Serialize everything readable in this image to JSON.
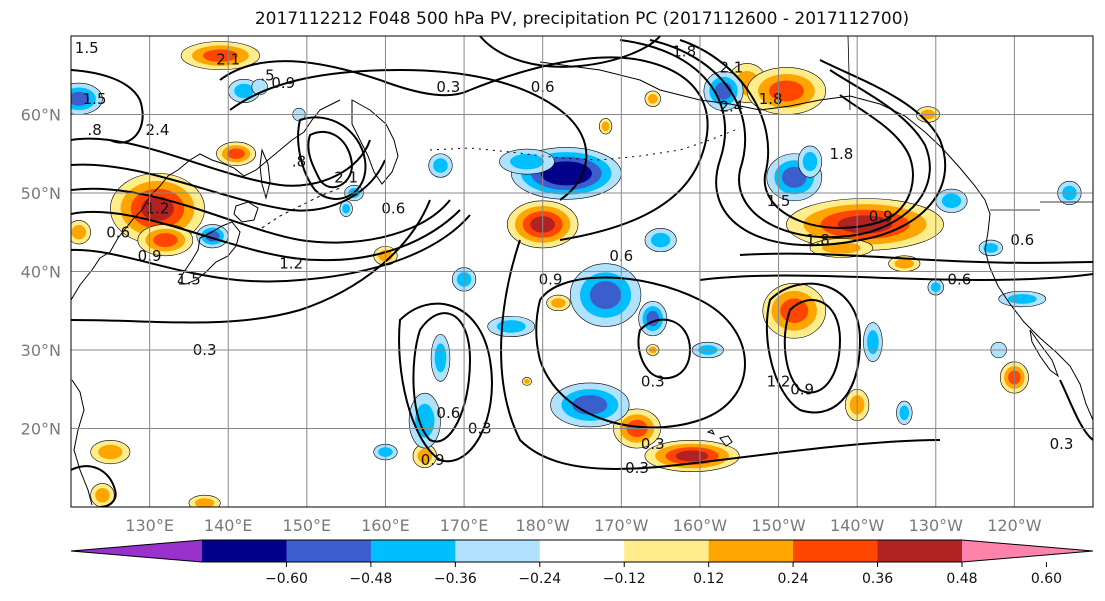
{
  "chart_data": {
    "type": "heatmap",
    "title": "2017112212 F048 500 hPa PV, precipitation PC (2017112600 - 2017112700)",
    "projection": "PlateCarree",
    "lon_range": [
      120,
      250
    ],
    "lat_range": [
      10,
      70
    ],
    "grid": true,
    "lat_ticks": [
      {
        "lat": 20,
        "label": "20°N"
      },
      {
        "lat": 30,
        "label": "30°N"
      },
      {
        "lat": 40,
        "label": "40°N"
      },
      {
        "lat": 50,
        "label": "50°N"
      },
      {
        "lat": 60,
        "label": "60°N"
      }
    ],
    "lon_ticks": [
      {
        "lon": 130,
        "label": "130°E"
      },
      {
        "lon": 140,
        "label": "140°E"
      },
      {
        "lon": 150,
        "label": "150°E"
      },
      {
        "lon": 160,
        "label": "160°E"
      },
      {
        "lon": 170,
        "label": "170°E"
      },
      {
        "lon": 180,
        "label": "180°W"
      },
      {
        "lon": 190,
        "label": "170°W"
      },
      {
        "lon": 200,
        "label": "160°W"
      },
      {
        "lon": 210,
        "label": "150°W"
      },
      {
        "lon": 220,
        "label": "140°W"
      },
      {
        "lon": 230,
        "label": "130°W"
      },
      {
        "lon": 240,
        "label": "120°W"
      }
    ],
    "colorbar": {
      "levels": [
        -0.72,
        -0.6,
        -0.48,
        -0.36,
        -0.24,
        -0.12,
        0.12,
        0.24,
        0.36,
        0.48,
        0.6,
        0.72
      ],
      "colors": [
        "#9932cc",
        "#00008b",
        "#3a5fcd",
        "#00bfff",
        "#b0e2ff",
        "#ffffff",
        "#ffec8b",
        "#ffa500",
        "#ff4500",
        "#b22222",
        "#ff82ab"
      ],
      "extend": "both",
      "tick_labels": [
        "−0.60",
        "−0.48",
        "−0.36",
        "−0.24",
        "−0.12",
        "0.12",
        "0.24",
        "0.36",
        "0.48",
        "0.60"
      ],
      "tick_values": [
        -0.6,
        -0.48,
        -0.36,
        -0.24,
        -0.12,
        0.12,
        0.24,
        0.36,
        0.48,
        0.6
      ]
    },
    "shaded_blobs": [
      {
        "lon": 131,
        "lat": 48,
        "rx": 6,
        "ry": 4.5,
        "value": 0.55
      },
      {
        "lon": 132,
        "lat": 44,
        "rx": 3.5,
        "ry": 2,
        "value": 0.45
      },
      {
        "lon": 139,
        "lat": 67.5,
        "rx": 5,
        "ry": 1.8,
        "value": 0.45
      },
      {
        "lon": 141,
        "lat": 55,
        "rx": 2.5,
        "ry": 1.5,
        "value": 0.4
      },
      {
        "lon": 160,
        "lat": 42,
        "rx": 1.5,
        "ry": 1.2,
        "value": 0.3
      },
      {
        "lon": 180,
        "lat": 46,
        "rx": 4.5,
        "ry": 3,
        "value": 0.55
      },
      {
        "lon": 182,
        "lat": 36,
        "rx": 1.5,
        "ry": 1,
        "value": 0.3
      },
      {
        "lon": 188,
        "lat": 58.5,
        "rx": 0.8,
        "ry": 1,
        "value": 0.25
      },
      {
        "lon": 192,
        "lat": 20,
        "rx": 3,
        "ry": 2.5,
        "value": 0.4
      },
      {
        "lon": 199,
        "lat": 16.5,
        "rx": 6,
        "ry": 2,
        "value": 0.5
      },
      {
        "lon": 206,
        "lat": 64,
        "rx": 2.5,
        "ry": 2.5,
        "value": 0.35
      },
      {
        "lon": 211,
        "lat": 63,
        "rx": 5,
        "ry": 3,
        "value": 0.45
      },
      {
        "lon": 212,
        "lat": 35,
        "rx": 4,
        "ry": 3.5,
        "value": 0.4
      },
      {
        "lon": 221,
        "lat": 46,
        "rx": 10,
        "ry": 3.3,
        "value": 0.55
      },
      {
        "lon": 218,
        "lat": 43,
        "rx": 4,
        "ry": 1.2,
        "value": 0.3
      },
      {
        "lon": 220,
        "lat": 23,
        "rx": 1.5,
        "ry": 2,
        "value": 0.35
      },
      {
        "lon": 226,
        "lat": 41,
        "rx": 2,
        "ry": 1,
        "value": 0.3
      },
      {
        "lon": 240,
        "lat": 26.5,
        "rx": 1.8,
        "ry": 2,
        "value": 0.45
      },
      {
        "lon": 125,
        "lat": 17,
        "rx": 2.5,
        "ry": 1.5,
        "value": 0.3
      },
      {
        "lon": 124,
        "lat": 11.5,
        "rx": 1.5,
        "ry": 1.5,
        "value": 0.3
      },
      {
        "lon": 137,
        "lat": 10.5,
        "rx": 2,
        "ry": 1,
        "value": 0.25
      },
      {
        "lon": 165,
        "lat": 16.5,
        "rx": 1.5,
        "ry": 1.5,
        "value": 0.3
      },
      {
        "lon": 194,
        "lat": 62,
        "rx": 1,
        "ry": 1,
        "value": 0.28
      },
      {
        "lon": 194,
        "lat": 30,
        "rx": 0.8,
        "ry": 0.7,
        "value": 0.3
      },
      {
        "lon": 178,
        "lat": 26,
        "rx": 0.6,
        "ry": 0.5,
        "value": 0.25
      },
      {
        "lon": 229,
        "lat": 60,
        "rx": 1.5,
        "ry": 1,
        "value": 0.3
      },
      {
        "lon": 121,
        "lat": 45,
        "rx": 1.5,
        "ry": 1.5,
        "value": 0.35
      },
      {
        "lon": 142,
        "lat": 63,
        "rx": 2,
        "ry": 1.5,
        "value": -0.35
      },
      {
        "lon": 121,
        "lat": 62,
        "rx": 3,
        "ry": 2,
        "value": -0.45
      },
      {
        "lon": 138,
        "lat": 44.5,
        "rx": 2,
        "ry": 1.5,
        "value": -0.4
      },
      {
        "lon": 183,
        "lat": 52.5,
        "rx": 7,
        "ry": 3.3,
        "value": -0.6
      },
      {
        "lon": 178,
        "lat": 54,
        "rx": 3.5,
        "ry": 1.6,
        "value": -0.3
      },
      {
        "lon": 167,
        "lat": 53.5,
        "rx": 1.5,
        "ry": 1.5,
        "value": -0.25
      },
      {
        "lon": 156,
        "lat": 50,
        "rx": 1.2,
        "ry": 1,
        "value": -0.25
      },
      {
        "lon": 188,
        "lat": 37,
        "rx": 4.5,
        "ry": 4,
        "value": -0.4
      },
      {
        "lon": 194,
        "lat": 34,
        "rx": 1.8,
        "ry": 2.2,
        "value": -0.45
      },
      {
        "lon": 195,
        "lat": 44,
        "rx": 2,
        "ry": 1.5,
        "value": -0.3
      },
      {
        "lon": 186,
        "lat": 23,
        "rx": 5,
        "ry": 2.8,
        "value": -0.45
      },
      {
        "lon": 176,
        "lat": 33,
        "rx": 3,
        "ry": 1.3,
        "value": -0.3
      },
      {
        "lon": 170,
        "lat": 39,
        "rx": 1.5,
        "ry": 1.5,
        "value": -0.25
      },
      {
        "lon": 167,
        "lat": 29,
        "rx": 1.2,
        "ry": 3,
        "value": -0.3
      },
      {
        "lon": 165,
        "lat": 21,
        "rx": 2,
        "ry": 3.5,
        "value": -0.35
      },
      {
        "lon": 160,
        "lat": 17,
        "rx": 1.5,
        "ry": 1,
        "value": -0.3
      },
      {
        "lon": 144,
        "lat": 63.5,
        "rx": 1,
        "ry": 1,
        "value": -0.2
      },
      {
        "lon": 203,
        "lat": 63,
        "rx": 2.5,
        "ry": 2.5,
        "value": -0.45
      },
      {
        "lon": 212,
        "lat": 52,
        "rx": 3.5,
        "ry": 3,
        "value": -0.45
      },
      {
        "lon": 214,
        "lat": 54,
        "rx": 1.5,
        "ry": 2,
        "value": -0.3
      },
      {
        "lon": 232,
        "lat": 49,
        "rx": 2,
        "ry": 1.5,
        "value": -0.35
      },
      {
        "lon": 247,
        "lat": 50,
        "rx": 1.5,
        "ry": 1.5,
        "value": -0.3
      },
      {
        "lon": 241,
        "lat": 36.5,
        "rx": 3,
        "ry": 1,
        "value": -0.25
      },
      {
        "lon": 237,
        "lat": 43,
        "rx": 1.5,
        "ry": 1,
        "value": -0.25
      },
      {
        "lon": 230,
        "lat": 38,
        "rx": 1,
        "ry": 1,
        "value": -0.25
      },
      {
        "lon": 222,
        "lat": 31,
        "rx": 1.2,
        "ry": 2.5,
        "value": -0.25
      },
      {
        "lon": 238,
        "lat": 30,
        "rx": 1,
        "ry": 1,
        "value": -0.2
      },
      {
        "lon": 226,
        "lat": 22,
        "rx": 1,
        "ry": 1.5,
        "value": -0.25
      },
      {
        "lon": 201,
        "lat": 30,
        "rx": 2,
        "ry": 1,
        "value": -0.25
      },
      {
        "lon": 155,
        "lat": 48,
        "rx": 0.8,
        "ry": 1,
        "value": -0.25
      },
      {
        "lon": 149,
        "lat": 60,
        "rx": 0.8,
        "ry": 0.8,
        "value": -0.2
      }
    ],
    "contour_labels": [
      {
        "text": "1.5",
        "lon": 122,
        "lat": 68.5
      },
      {
        "text": "2.1",
        "lon": 140,
        "lat": 67
      },
      {
        "text": ".5",
        "lon": 145,
        "lat": 65
      },
      {
        "text": "0.9",
        "lon": 147,
        "lat": 64
      },
      {
        "text": "0.3",
        "lon": 168,
        "lat": 63.5
      },
      {
        "text": "0.6",
        "lon": 180,
        "lat": 63.5
      },
      {
        "text": "1.8",
        "lon": 198,
        "lat": 68
      },
      {
        "text": "2.1",
        "lon": 204,
        "lat": 66
      },
      {
        "text": "2.4",
        "lon": 204,
        "lat": 61
      },
      {
        "text": "1.8",
        "lon": 209,
        "lat": 62
      },
      {
        "text": "1.5",
        "lon": 123,
        "lat": 62
      },
      {
        "text": ".8",
        "lon": 123,
        "lat": 58
      },
      {
        "text": "2.4",
        "lon": 131,
        "lat": 58
      },
      {
        "text": ".8",
        "lon": 149,
        "lat": 54
      },
      {
        "text": "2.1",
        "lon": 155,
        "lat": 52
      },
      {
        "text": "0.6",
        "lon": 161,
        "lat": 48
      },
      {
        "text": "1.2",
        "lon": 131,
        "lat": 48
      },
      {
        "text": "0.6",
        "lon": 126,
        "lat": 45
      },
      {
        "text": "0.9",
        "lon": 130,
        "lat": 42
      },
      {
        "text": "1.5",
        "lon": 135,
        "lat": 39
      },
      {
        "text": "1.2",
        "lon": 148,
        "lat": 41
      },
      {
        "text": "1.8",
        "lon": 218,
        "lat": 55
      },
      {
        "text": "1.5",
        "lon": 210,
        "lat": 49
      },
      {
        "text": "1.8",
        "lon": 215,
        "lat": 44
      },
      {
        "text": "0.9",
        "lon": 223,
        "lat": 47
      },
      {
        "text": "0.6",
        "lon": 190,
        "lat": 42
      },
      {
        "text": "0.9",
        "lon": 181,
        "lat": 39
      },
      {
        "text": "0.6",
        "lon": 241,
        "lat": 44
      },
      {
        "text": "0.6",
        "lon": 233,
        "lat": 39
      },
      {
        "text": "0.3",
        "lon": 137,
        "lat": 30
      },
      {
        "text": "0.3",
        "lon": 194,
        "lat": 26
      },
      {
        "text": "0.3",
        "lon": 192,
        "lat": 15
      },
      {
        "text": "0.3",
        "lon": 172,
        "lat": 20
      },
      {
        "text": "0.9",
        "lon": 166,
        "lat": 16
      },
      {
        "text": "0.6",
        "lon": 168,
        "lat": 22
      },
      {
        "text": "0.3",
        "lon": 194,
        "lat": 18
      },
      {
        "text": "1.2",
        "lon": 210,
        "lat": 26
      },
      {
        "text": "0.9",
        "lon": 213,
        "lat": 25
      },
      {
        "text": "0.3",
        "lon": 246,
        "lat": 18
      }
    ]
  }
}
